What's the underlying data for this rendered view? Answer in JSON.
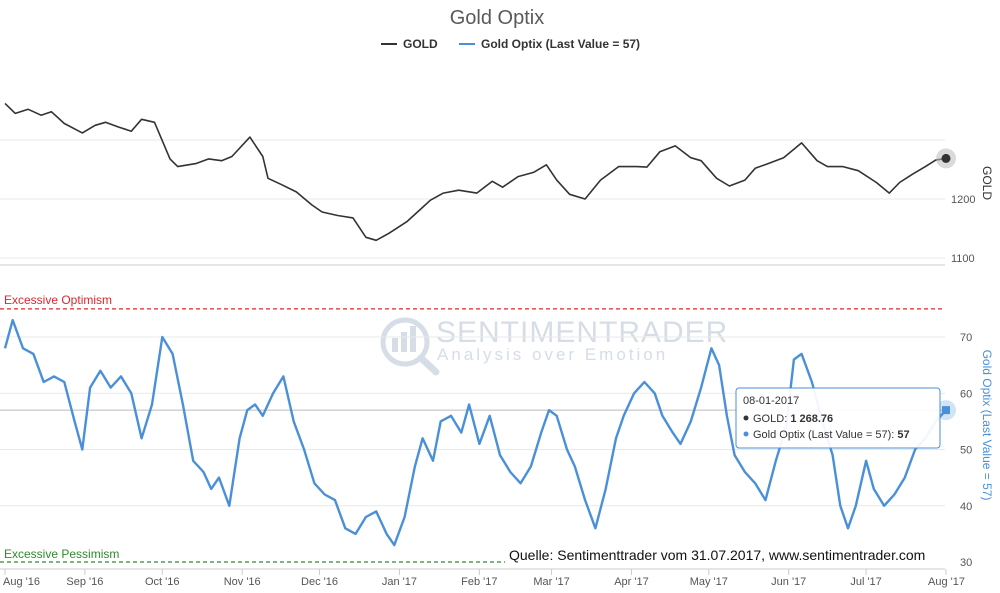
{
  "colors": {
    "gold": "#333333",
    "optix": "#4a90d9",
    "optimism": "#e0262c",
    "pessimism": "#2e8b2e",
    "grid": "#e6e6e6"
  },
  "chart_data": {
    "type": "line",
    "title": "Gold Optix",
    "legend": [
      {
        "name": "GOLD",
        "color": "#333333"
      },
      {
        "name": "Gold Optix (Last Value = 57)",
        "color": "#4a90d9"
      }
    ],
    "x_range": [
      "2016-08-01",
      "2017-08-01"
    ],
    "x_tick_labels": [
      "Aug '16",
      "Sep '16",
      "Oct '16",
      "Nov '16",
      "Dec '16",
      "Jan '17",
      "Feb '17",
      "Mar '17",
      "Apr '17",
      "May '17",
      "Jun '17",
      "Jul '17",
      "Aug '17"
    ],
    "x_tick_dates": [
      "2016-08-01",
      "2016-09-01",
      "2016-10-01",
      "2016-11-01",
      "2016-12-01",
      "2017-01-01",
      "2017-02-01",
      "2017-03-01",
      "2017-04-01",
      "2017-05-01",
      "2017-06-01",
      "2017-07-01",
      "2017-08-01"
    ],
    "upper": {
      "ylabel": "GOLD",
      "ylim": [
        1100,
        1380
      ],
      "yticks": [
        1100,
        1200
      ],
      "series": {
        "name": "GOLD",
        "points": [
          [
            "2016-08-01",
            1362
          ],
          [
            "2016-08-05",
            1345
          ],
          [
            "2016-08-10",
            1352
          ],
          [
            "2016-08-15",
            1342
          ],
          [
            "2016-08-19",
            1348
          ],
          [
            "2016-08-24",
            1328
          ],
          [
            "2016-08-31",
            1312
          ],
          [
            "2016-09-05",
            1325
          ],
          [
            "2016-09-09",
            1330
          ],
          [
            "2016-09-14",
            1322
          ],
          [
            "2016-09-19",
            1315
          ],
          [
            "2016-09-23",
            1335
          ],
          [
            "2016-09-28",
            1330
          ],
          [
            "2016-10-04",
            1268
          ],
          [
            "2016-10-07",
            1255
          ],
          [
            "2016-10-14",
            1260
          ],
          [
            "2016-10-19",
            1268
          ],
          [
            "2016-10-24",
            1265
          ],
          [
            "2016-10-28",
            1272
          ],
          [
            "2016-11-04",
            1305
          ],
          [
            "2016-11-09",
            1272
          ],
          [
            "2016-11-11",
            1235
          ],
          [
            "2016-11-16",
            1225
          ],
          [
            "2016-11-22",
            1212
          ],
          [
            "2016-11-28",
            1190
          ],
          [
            "2016-12-02",
            1178
          ],
          [
            "2016-12-08",
            1172
          ],
          [
            "2016-12-14",
            1168
          ],
          [
            "2016-12-19",
            1135
          ],
          [
            "2016-12-23",
            1130
          ],
          [
            "2016-12-28",
            1142
          ],
          [
            "2017-01-04",
            1162
          ],
          [
            "2017-01-09",
            1182
          ],
          [
            "2017-01-13",
            1198
          ],
          [
            "2017-01-18",
            1210
          ],
          [
            "2017-01-24",
            1215
          ],
          [
            "2017-01-31",
            1210
          ],
          [
            "2017-02-06",
            1230
          ],
          [
            "2017-02-10",
            1220
          ],
          [
            "2017-02-16",
            1238
          ],
          [
            "2017-02-22",
            1245
          ],
          [
            "2017-02-27",
            1258
          ],
          [
            "2017-03-03",
            1232
          ],
          [
            "2017-03-08",
            1208
          ],
          [
            "2017-03-14",
            1200
          ],
          [
            "2017-03-20",
            1232
          ],
          [
            "2017-03-27",
            1255
          ],
          [
            "2017-04-03",
            1255
          ],
          [
            "2017-04-07",
            1254
          ],
          [
            "2017-04-12",
            1280
          ],
          [
            "2017-04-18",
            1290
          ],
          [
            "2017-04-24",
            1270
          ],
          [
            "2017-04-28",
            1265
          ],
          [
            "2017-05-04",
            1235
          ],
          [
            "2017-05-09",
            1222
          ],
          [
            "2017-05-15",
            1232
          ],
          [
            "2017-05-19",
            1252
          ],
          [
            "2017-05-24",
            1260
          ],
          [
            "2017-05-30",
            1270
          ],
          [
            "2017-06-06",
            1295
          ],
          [
            "2017-06-12",
            1265
          ],
          [
            "2017-06-16",
            1255
          ],
          [
            "2017-06-22",
            1255
          ],
          [
            "2017-06-28",
            1248
          ],
          [
            "2017-07-05",
            1228
          ],
          [
            "2017-07-10",
            1210
          ],
          [
            "2017-07-14",
            1228
          ],
          [
            "2017-07-19",
            1242
          ],
          [
            "2017-07-24",
            1255
          ],
          [
            "2017-07-28",
            1266
          ],
          [
            "2017-08-01",
            1268.76
          ]
        ]
      }
    },
    "lower": {
      "ylabel": "Gold Optix (Last Value = 57)",
      "ylim": [
        28,
        80
      ],
      "yticks": [
        30,
        40,
        50,
        60,
        70
      ],
      "reference_lines": [
        {
          "label": "Excessive Optimism",
          "value": 75
        },
        {
          "label": "Excessive Pessimism",
          "value": 30
        }
      ],
      "series": {
        "name": "Gold Optix (Last Value = 57)",
        "points": [
          [
            "2016-08-01",
            68
          ],
          [
            "2016-08-04",
            73
          ],
          [
            "2016-08-08",
            68
          ],
          [
            "2016-08-12",
            67
          ],
          [
            "2016-08-16",
            62
          ],
          [
            "2016-08-20",
            63
          ],
          [
            "2016-08-24",
            62
          ],
          [
            "2016-08-28",
            55
          ],
          [
            "2016-08-31",
            50
          ],
          [
            "2016-09-03",
            61
          ],
          [
            "2016-09-07",
            64
          ],
          [
            "2016-09-11",
            61
          ],
          [
            "2016-09-15",
            63
          ],
          [
            "2016-09-19",
            60
          ],
          [
            "2016-09-23",
            52
          ],
          [
            "2016-09-27",
            58
          ],
          [
            "2016-10-01",
            70
          ],
          [
            "2016-10-05",
            67
          ],
          [
            "2016-10-09",
            58
          ],
          [
            "2016-10-13",
            48
          ],
          [
            "2016-10-17",
            46
          ],
          [
            "2016-10-20",
            43
          ],
          [
            "2016-10-23",
            45
          ],
          [
            "2016-10-27",
            40
          ],
          [
            "2016-10-31",
            52
          ],
          [
            "2016-11-03",
            57
          ],
          [
            "2016-11-06",
            58
          ],
          [
            "2016-11-09",
            56
          ],
          [
            "2016-11-13",
            60
          ],
          [
            "2016-11-17",
            63
          ],
          [
            "2016-11-21",
            55
          ],
          [
            "2016-11-25",
            50
          ],
          [
            "2016-11-29",
            44
          ],
          [
            "2016-12-03",
            42
          ],
          [
            "2016-12-07",
            41
          ],
          [
            "2016-12-11",
            36
          ],
          [
            "2016-12-15",
            35
          ],
          [
            "2016-12-19",
            38
          ],
          [
            "2016-12-23",
            39
          ],
          [
            "2016-12-27",
            35
          ],
          [
            "2016-12-30",
            33
          ],
          [
            "2017-01-03",
            38
          ],
          [
            "2017-01-07",
            47
          ],
          [
            "2017-01-10",
            52
          ],
          [
            "2017-01-14",
            48
          ],
          [
            "2017-01-17",
            55
          ],
          [
            "2017-01-21",
            56
          ],
          [
            "2017-01-25",
            53
          ],
          [
            "2017-01-28",
            58
          ],
          [
            "2017-02-01",
            51
          ],
          [
            "2017-02-05",
            56
          ],
          [
            "2017-02-09",
            49
          ],
          [
            "2017-02-13",
            46
          ],
          [
            "2017-02-17",
            44
          ],
          [
            "2017-02-21",
            47
          ],
          [
            "2017-02-25",
            53
          ],
          [
            "2017-02-28",
            57
          ],
          [
            "2017-03-03",
            56
          ],
          [
            "2017-03-07",
            50
          ],
          [
            "2017-03-10",
            47
          ],
          [
            "2017-03-14",
            41
          ],
          [
            "2017-03-18",
            36
          ],
          [
            "2017-03-22",
            43
          ],
          [
            "2017-03-26",
            52
          ],
          [
            "2017-03-29",
            56
          ],
          [
            "2017-04-02",
            60
          ],
          [
            "2017-04-06",
            62
          ],
          [
            "2017-04-10",
            60
          ],
          [
            "2017-04-13",
            56
          ],
          [
            "2017-04-17",
            53
          ],
          [
            "2017-04-20",
            51
          ],
          [
            "2017-04-24",
            55
          ],
          [
            "2017-04-28",
            61
          ],
          [
            "2017-05-02",
            68
          ],
          [
            "2017-05-05",
            65
          ],
          [
            "2017-05-08",
            56
          ],
          [
            "2017-05-11",
            49
          ],
          [
            "2017-05-15",
            46
          ],
          [
            "2017-05-19",
            44
          ],
          [
            "2017-05-23",
            41
          ],
          [
            "2017-05-27",
            48
          ],
          [
            "2017-05-31",
            54
          ],
          [
            "2017-06-03",
            66
          ],
          [
            "2017-06-06",
            67
          ],
          [
            "2017-06-10",
            62
          ],
          [
            "2017-06-14",
            55
          ],
          [
            "2017-06-18",
            49
          ],
          [
            "2017-06-21",
            40
          ],
          [
            "2017-06-24",
            36
          ],
          [
            "2017-06-27",
            40
          ],
          [
            "2017-07-01",
            48
          ],
          [
            "2017-07-04",
            43
          ],
          [
            "2017-07-08",
            40
          ],
          [
            "2017-07-12",
            42
          ],
          [
            "2017-07-16",
            45
          ],
          [
            "2017-07-20",
            50
          ],
          [
            "2017-07-24",
            52
          ],
          [
            "2017-07-28",
            55
          ],
          [
            "2017-08-01",
            57
          ]
        ]
      }
    },
    "tooltip": {
      "date": "08-01-2017",
      "gold_label": "GOLD",
      "gold_value": "1 268.76",
      "optix_label": "Gold Optix (Last Value = 57)",
      "optix_value": "57"
    },
    "watermark": {
      "name": "SENTIMENTRADER",
      "tagline": "Analysis over Emotion"
    },
    "source_note": "Quelle: Sentimenttrader vom 31.07.2017, www.sentimentrader.com"
  }
}
